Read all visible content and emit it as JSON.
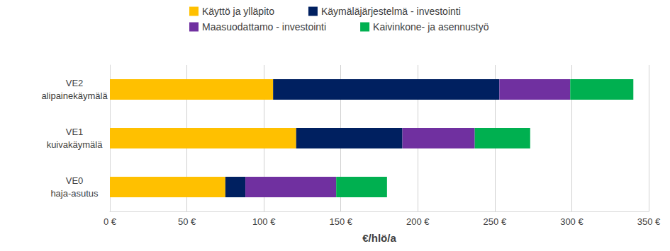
{
  "chart_data": {
    "type": "bar",
    "orientation": "horizontal",
    "stacked": true,
    "grid": true,
    "legend": "top",
    "x_label": "€/hlö/a",
    "categories": [
      "VE2\nalipainekäymälä",
      "VE1\nkuivakäymälä",
      "VE0\nhaja-asutus"
    ],
    "series": [
      {
        "name": "Käyttö ja ylläpito",
        "color": "#FFC000",
        "values": [
          106,
          121,
          75
        ]
      },
      {
        "name": "Käymäläjärjestelmä - investointi",
        "color": "#002060",
        "values": [
          147,
          69,
          13
        ]
      },
      {
        "name": "Maasuodattamo - investointi",
        "color": "#7030A0",
        "values": [
          46,
          47,
          59
        ]
      },
      {
        "name": "Kaivinkone- ja asennustyö",
        "color": "#00B050",
        "values": [
          41,
          36,
          33
        ]
      }
    ],
    "xlim": [
      0,
      350
    ],
    "xticks": [
      {
        "value": 0,
        "label": "0 €"
      },
      {
        "value": 50,
        "label": "50 €"
      },
      {
        "value": 100,
        "label": "100 €"
      },
      {
        "value": 150,
        "label": "150 €"
      },
      {
        "value": 200,
        "label": "200 €"
      },
      {
        "value": 250,
        "label": "250 €"
      },
      {
        "value": 300,
        "label": "300 €"
      },
      {
        "value": 350,
        "label": "350 €"
      }
    ]
  }
}
